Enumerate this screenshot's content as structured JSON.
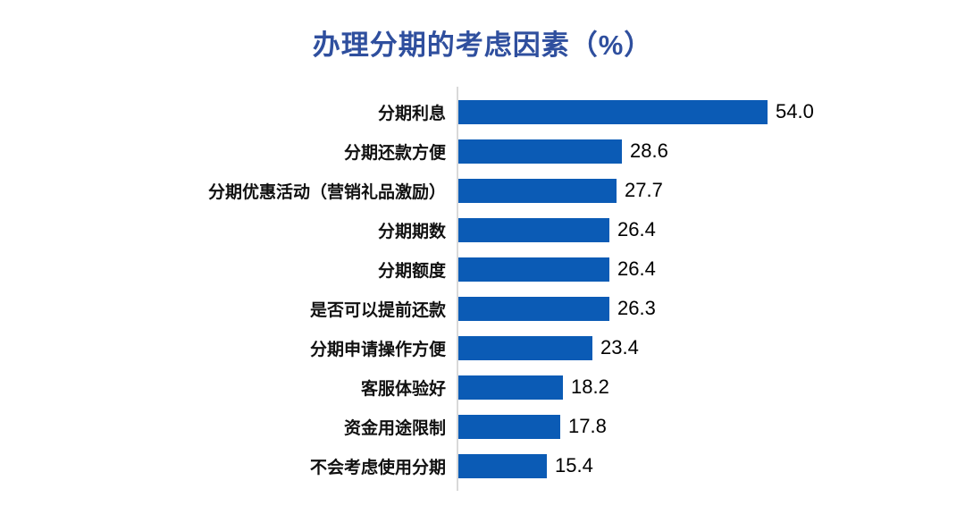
{
  "chart_data": {
    "type": "bar",
    "orientation": "horizontal",
    "title": "办理分期的考虑因素（%）",
    "categories": [
      "分期利息",
      "分期还款方便",
      "分期优惠活动（营销礼品激励）",
      "分期期数",
      "分期额度",
      "是否可以提前还款",
      "分期申请操作方便",
      "客服体验好",
      "资金用途限制",
      "不会考虑使用分期"
    ],
    "values": [
      54.0,
      28.6,
      27.7,
      26.4,
      26.4,
      26.3,
      23.4,
      18.2,
      17.8,
      15.4
    ],
    "value_labels": [
      "54.0",
      "28.6",
      "27.7",
      "26.4",
      "26.4",
      "26.3",
      "23.4",
      "18.2",
      "17.8",
      "15.4"
    ],
    "xlabel": "",
    "ylabel": "",
    "xlim": [
      0,
      60
    ],
    "grid": false,
    "legend": false,
    "bar_color": "#0B5BB5",
    "title_color": "#2F4F9E",
    "axis_line_color": "#D9D9D9",
    "label_color": "#111111",
    "value_color": "#000000",
    "background_color": "#FFFFFF"
  }
}
